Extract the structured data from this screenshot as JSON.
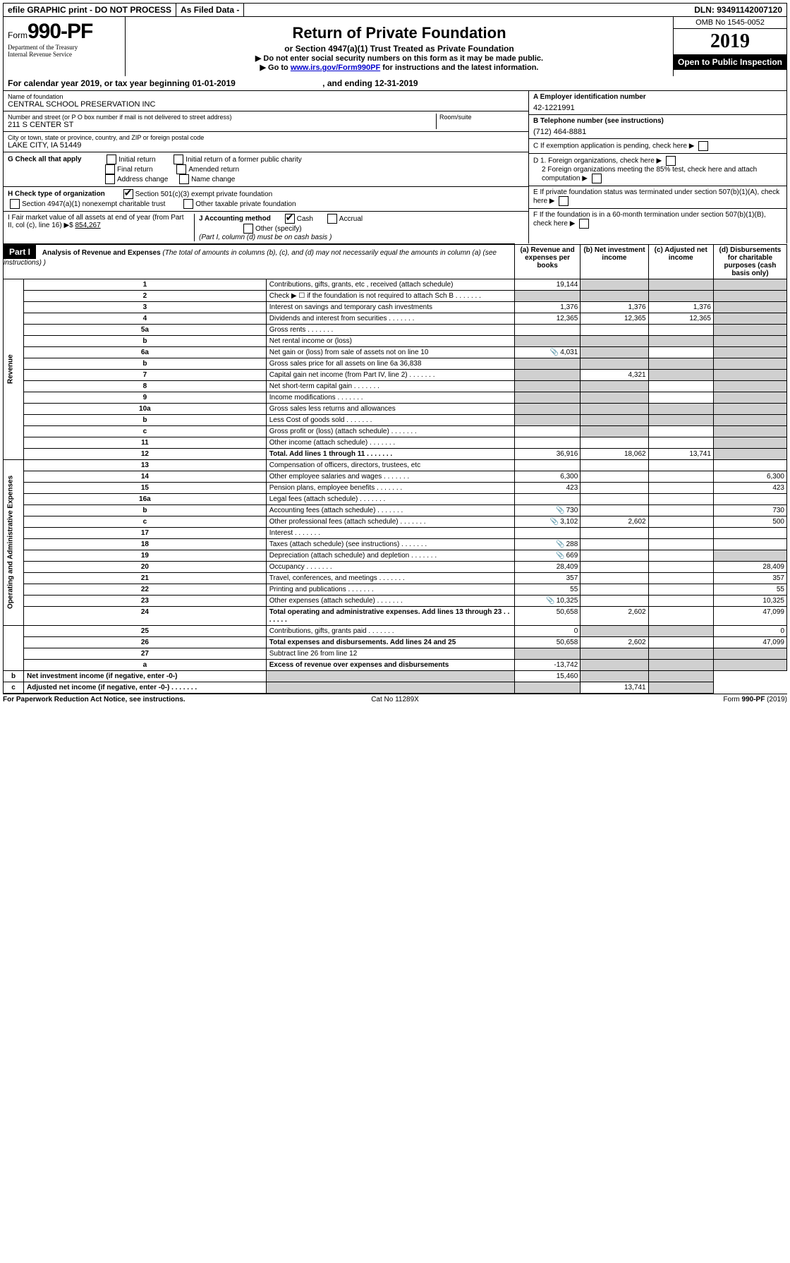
{
  "topbar": {
    "efile": "efile GRAPHIC print - DO NOT PROCESS",
    "asfiled": "As Filed Data -",
    "dln": "DLN: 93491142007120"
  },
  "header": {
    "form_label": "Form",
    "form_no": "990-PF",
    "dept1": "Department of the Treasury",
    "dept2": "Internal Revenue Service",
    "title": "Return of Private Foundation",
    "subtitle": "or Section 4947(a)(1) Trust Treated as Private Foundation",
    "note1": "▶ Do not enter social security numbers on this form as it may be made public.",
    "note2_pre": "▶ Go to ",
    "note2_link": "www.irs.gov/Form990PF",
    "note2_post": " for instructions and the latest information.",
    "omb": "OMB No 1545-0052",
    "year": "2019",
    "open": "Open to Public Inspection"
  },
  "calyear": {
    "text_a": "For calendar year 2019, or tax year beginning 01-01-2019",
    "text_b": ", and ending 12-31-2019"
  },
  "info": {
    "name_lbl": "Name of foundation",
    "name": "CENTRAL SCHOOL PRESERVATION INC",
    "addr_lbl": "Number and street (or P O  box number if mail is not delivered to street address)",
    "addr": "211 S CENTER ST",
    "room_lbl": "Room/suite",
    "city_lbl": "City or town, state or province, country, and ZIP or foreign postal code",
    "city": "LAKE CITY, IA  51449",
    "a_lbl": "A Employer identification number",
    "a_val": "42-1221991",
    "b_lbl": "B Telephone number (see instructions)",
    "b_val": "(712) 464-8881",
    "c_lbl": "C If exemption application is pending, check here",
    "d1": "D 1. Foreign organizations, check here",
    "d2": "2 Foreign organizations meeting the 85% test, check here and attach computation",
    "e": "E  If private foundation status was terminated under section 507(b)(1)(A), check here",
    "f": "F  If the foundation is in a 60-month termination under section 507(b)(1)(B), check here"
  },
  "g": {
    "label": "G Check all that apply",
    "opts": [
      "Initial return",
      "Initial return of a former public charity",
      "Final return",
      "Amended return",
      "Address change",
      "Name change"
    ]
  },
  "h": {
    "label": "H Check type of organization",
    "opt1": "Section 501(c)(3) exempt private foundation",
    "opt2": "Section 4947(a)(1) nonexempt charitable trust",
    "opt3": "Other taxable private foundation"
  },
  "i": {
    "label": "I Fair market value of all assets at end of year (from Part II, col  (c), line 16) ▶$ ",
    "val": "854,267"
  },
  "j": {
    "label": "J Accounting method",
    "cash": "Cash",
    "accrual": "Accrual",
    "other": "Other (specify)",
    "note": "(Part I, column (d) must be on cash basis )"
  },
  "part1": {
    "label": "Part I",
    "title": "Analysis of Revenue and Expenses",
    "title_note": " (The total of amounts in columns (b), (c), and (d) may not necessarily equal the amounts in column (a) (see instructions) )",
    "col_a": "(a) Revenue and expenses per books",
    "col_b": "(b) Net investment income",
    "col_c": "(c) Adjusted net income",
    "col_d": "(d) Disbursements for charitable purposes (cash basis only)"
  },
  "sections": {
    "revenue": "Revenue",
    "expenses": "Operating and Administrative Expenses"
  },
  "rows": [
    {
      "n": "1",
      "d": "Contributions, gifts, grants, etc , received (attach schedule)",
      "a": "19,144",
      "b": "",
      "c": "",
      "dd": "",
      "grey_b": true,
      "grey_c": true,
      "grey_d": true
    },
    {
      "n": "2",
      "d": "Check ▶ ☐ if the foundation is not required to attach Sch B",
      "dots": true,
      "a": "",
      "b": "",
      "c": "",
      "dd": "",
      "grey_a": true,
      "grey_b": true,
      "grey_c": true,
      "grey_d": true
    },
    {
      "n": "3",
      "d": "Interest on savings and temporary cash investments",
      "a": "1,376",
      "b": "1,376",
      "c": "1,376",
      "dd": "",
      "grey_d": true
    },
    {
      "n": "4",
      "d": "Dividends and interest from securities",
      "dots": true,
      "a": "12,365",
      "b": "12,365",
      "c": "12,365",
      "dd": "",
      "grey_d": true
    },
    {
      "n": "5a",
      "d": "Gross rents",
      "dots": true,
      "a": "",
      "b": "",
      "c": "",
      "dd": "",
      "grey_d": true
    },
    {
      "n": "b",
      "d": "Net rental income or (loss)",
      "a": "",
      "b": "",
      "c": "",
      "dd": "",
      "grey_a": true,
      "grey_b": true,
      "grey_c": true,
      "grey_d": true
    },
    {
      "n": "6a",
      "d": "Net gain or (loss) from sale of assets not on line 10",
      "icon": true,
      "a": "4,031",
      "b": "",
      "c": "",
      "dd": "",
      "grey_b": true,
      "grey_d": true
    },
    {
      "n": "b",
      "d": "Gross sales price for all assets on line 6a              36,838",
      "a": "",
      "b": "",
      "c": "",
      "dd": "",
      "grey_a": true,
      "grey_b": true,
      "grey_c": true,
      "grey_d": true
    },
    {
      "n": "7",
      "d": "Capital gain net income (from Part IV, line 2)",
      "dots": true,
      "a": "",
      "b": "4,321",
      "c": "",
      "dd": "",
      "grey_a": true,
      "grey_c": true,
      "grey_d": true
    },
    {
      "n": "8",
      "d": "Net short-term capital gain",
      "dots": true,
      "a": "",
      "b": "",
      "c": "",
      "dd": "",
      "grey_a": true,
      "grey_b": true,
      "grey_d": true
    },
    {
      "n": "9",
      "d": "Income modifications",
      "dots": true,
      "a": "",
      "b": "",
      "c": "",
      "dd": "",
      "grey_a": true,
      "grey_b": true,
      "grey_d": true
    },
    {
      "n": "10a",
      "d": "Gross sales less returns and allowances",
      "a": "",
      "b": "",
      "c": "",
      "dd": "",
      "grey_a": true,
      "grey_b": true,
      "grey_c": true,
      "grey_d": true
    },
    {
      "n": "b",
      "d": "Less  Cost of goods sold",
      "dots": true,
      "a": "",
      "b": "",
      "c": "",
      "dd": "",
      "grey_a": true,
      "grey_b": true,
      "grey_c": true,
      "grey_d": true
    },
    {
      "n": "c",
      "d": "Gross profit or (loss) (attach schedule)",
      "dots": true,
      "a": "",
      "b": "",
      "c": "",
      "dd": "",
      "grey_b": true,
      "grey_d": true
    },
    {
      "n": "11",
      "d": "Other income (attach schedule)",
      "dots": true,
      "a": "",
      "b": "",
      "c": "",
      "dd": "",
      "grey_d": true
    },
    {
      "n": "12",
      "d": "Total. Add lines 1 through 11",
      "bold": true,
      "dots": true,
      "a": "36,916",
      "b": "18,062",
      "c": "13,741",
      "dd": "",
      "grey_d": true
    },
    {
      "n": "13",
      "d": "Compensation of officers, directors, trustees, etc",
      "a": "",
      "b": "",
      "c": "",
      "dd": ""
    },
    {
      "n": "14",
      "d": "Other employee salaries and wages",
      "dots": true,
      "a": "6,300",
      "b": "",
      "c": "",
      "dd": "6,300"
    },
    {
      "n": "15",
      "d": "Pension plans, employee benefits",
      "dots": true,
      "a": "423",
      "b": "",
      "c": "",
      "dd": "423"
    },
    {
      "n": "16a",
      "d": "Legal fees (attach schedule)",
      "dots": true,
      "a": "",
      "b": "",
      "c": "",
      "dd": ""
    },
    {
      "n": "b",
      "d": "Accounting fees (attach schedule)",
      "dots": true,
      "icon": true,
      "a": "730",
      "b": "",
      "c": "",
      "dd": "730"
    },
    {
      "n": "c",
      "d": "Other professional fees (attach schedule)",
      "dots": true,
      "icon": true,
      "a": "3,102",
      "b": "2,602",
      "c": "",
      "dd": "500"
    },
    {
      "n": "17",
      "d": "Interest",
      "dots": true,
      "a": "",
      "b": "",
      "c": "",
      "dd": ""
    },
    {
      "n": "18",
      "d": "Taxes (attach schedule) (see instructions)",
      "dots": true,
      "icon": true,
      "a": "288",
      "b": "",
      "c": "",
      "dd": ""
    },
    {
      "n": "19",
      "d": "Depreciation (attach schedule) and depletion",
      "dots": true,
      "icon": true,
      "a": "669",
      "b": "",
      "c": "",
      "dd": "",
      "grey_d": true
    },
    {
      "n": "20",
      "d": "Occupancy",
      "dots": true,
      "a": "28,409",
      "b": "",
      "c": "",
      "dd": "28,409"
    },
    {
      "n": "21",
      "d": "Travel, conferences, and meetings",
      "dots": true,
      "a": "357",
      "b": "",
      "c": "",
      "dd": "357"
    },
    {
      "n": "22",
      "d": "Printing and publications",
      "dots": true,
      "a": "55",
      "b": "",
      "c": "",
      "dd": "55"
    },
    {
      "n": "23",
      "d": "Other expenses (attach schedule)",
      "dots": true,
      "icon": true,
      "a": "10,325",
      "b": "",
      "c": "",
      "dd": "10,325"
    },
    {
      "n": "24",
      "d": "Total operating and administrative expenses. Add lines 13 through 23",
      "bold": true,
      "dots": true,
      "a": "50,658",
      "b": "2,602",
      "c": "",
      "dd": "47,099"
    },
    {
      "n": "25",
      "d": "Contributions, gifts, grants paid",
      "dots": true,
      "a": "0",
      "b": "",
      "c": "",
      "dd": "0",
      "grey_b": true,
      "grey_c": true
    },
    {
      "n": "26",
      "d": "Total expenses and disbursements. Add lines 24 and 25",
      "bold": true,
      "a": "50,658",
      "b": "2,602",
      "c": "",
      "dd": "47,099"
    },
    {
      "n": "27",
      "d": "Subtract line 26 from line 12",
      "a": "",
      "b": "",
      "c": "",
      "dd": "",
      "grey_a": true,
      "grey_b": true,
      "grey_c": true,
      "grey_d": true
    },
    {
      "n": "a",
      "d": "Excess of revenue over expenses and disbursements",
      "bold": true,
      "a": "-13,742",
      "b": "",
      "c": "",
      "dd": "",
      "grey_b": true,
      "grey_c": true,
      "grey_d": true
    },
    {
      "n": "b",
      "d": "Net investment income (if negative, enter -0-)",
      "bold": true,
      "a": "",
      "b": "15,460",
      "c": "",
      "dd": "",
      "grey_a": true,
      "grey_c": true,
      "grey_d": true
    },
    {
      "n": "c",
      "d": "Adjusted net income (if negative, enter -0-)",
      "bold": true,
      "dots": true,
      "a": "",
      "b": "",
      "c": "13,741",
      "dd": "",
      "grey_a": true,
      "grey_b": true,
      "grey_d": true
    }
  ],
  "footer": {
    "left": "For Paperwork Reduction Act Notice, see instructions.",
    "mid": "Cat  No  11289X",
    "right": "Form 990-PF (2019)"
  }
}
